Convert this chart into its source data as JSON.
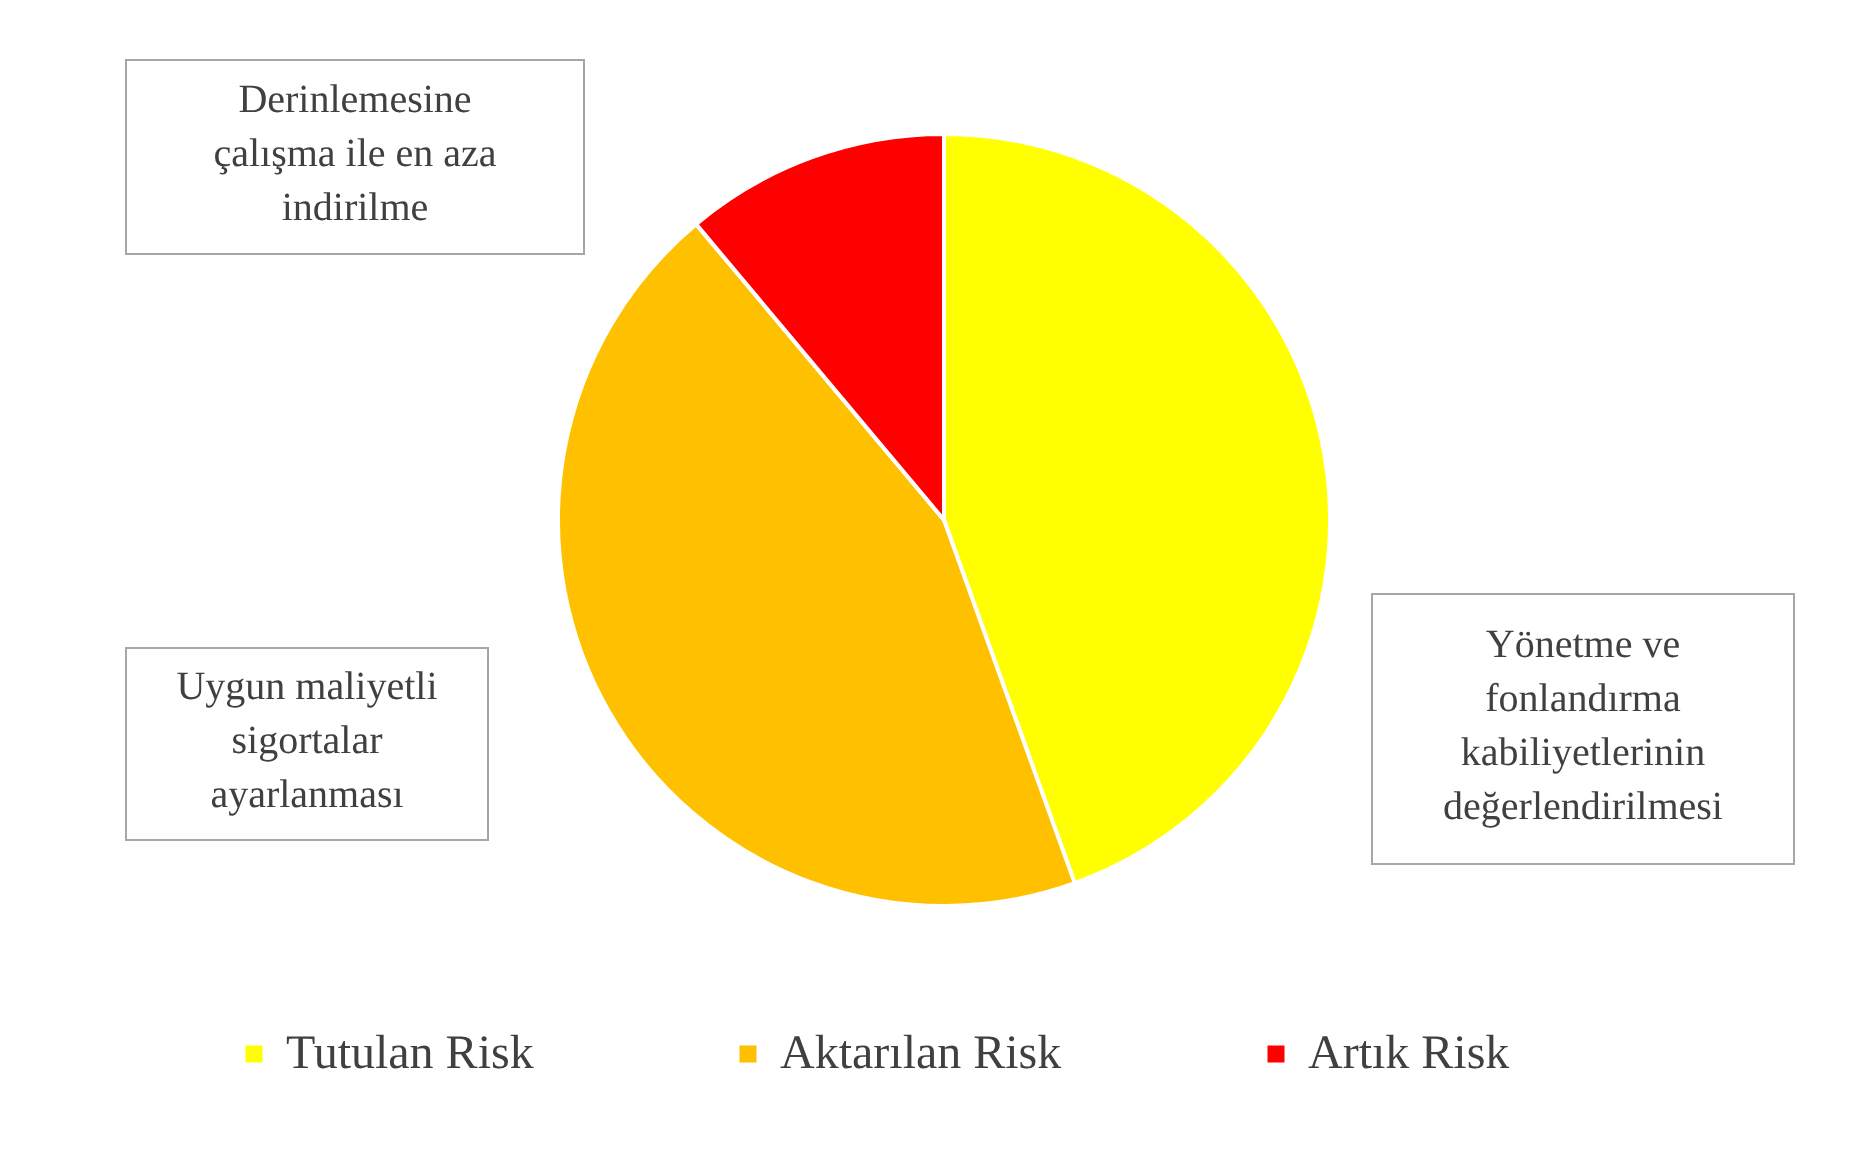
{
  "chart_data": {
    "type": "pie",
    "categories": [
      "Tutulan Risk",
      "Aktarılan Risk",
      "Artık Risk"
    ],
    "values": [
      44.5,
      44.4,
      11.1
    ],
    "colors": [
      "#ffff00",
      "#ffc000",
      "#ff0000"
    ],
    "annotations": [
      "Yönetme ve fonlandırma kabiliyetlerinin değerlendirilmesi",
      "Uygun maliyetli sigortalar ayarlanması",
      "Derinlemesine çalışma ile en aza indirilme"
    ],
    "legend": "bottom"
  }
}
